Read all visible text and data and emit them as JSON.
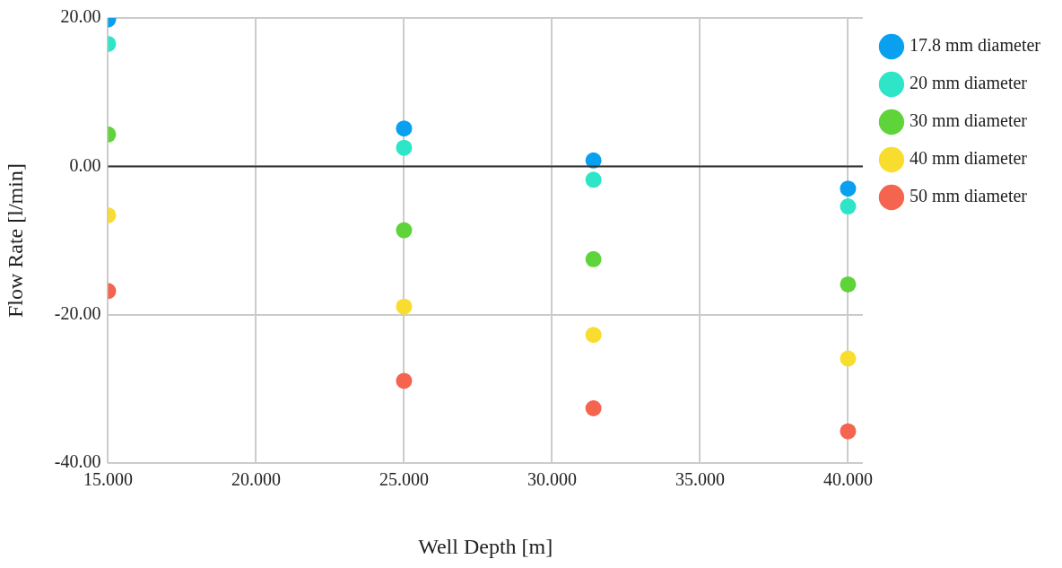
{
  "chart_data": {
    "type": "scatter",
    "xlabel": "Well Depth [m]",
    "ylabel": "Flow Rate [l/min]",
    "xlim": [
      15,
      40.5
    ],
    "ylim": [
      -40,
      20
    ],
    "xticks": [
      {
        "value": 15,
        "label": "15.000"
      },
      {
        "value": 20,
        "label": "20.000"
      },
      {
        "value": 25,
        "label": "25.000"
      },
      {
        "value": 30,
        "label": "30.000"
      },
      {
        "value": 35,
        "label": "35.000"
      },
      {
        "value": 40,
        "label": "40.000"
      }
    ],
    "yticks": [
      {
        "value": -40,
        "label": "-40.00"
      },
      {
        "value": -20,
        "label": "-20.00"
      },
      {
        "value": 0,
        "label": "0.00"
      },
      {
        "value": 20,
        "label": "20.00"
      }
    ],
    "x": [
      15,
      25,
      31.4,
      40
    ],
    "series": [
      {
        "name": "17.8 mm diameter",
        "color": "#0aa0f0",
        "values": [
          19.8,
          5.1,
          0.8,
          -3.0
        ]
      },
      {
        "name": "20 mm diameter",
        "color": "#2ee5c8",
        "values": [
          16.5,
          2.5,
          -1.8,
          -5.4
        ]
      },
      {
        "name": "30 mm diameter",
        "color": "#5fd33a",
        "values": [
          4.3,
          -8.6,
          -12.5,
          -15.9
        ]
      },
      {
        "name": "40 mm diameter",
        "color": "#f9dd2e",
        "values": [
          -6.6,
          -18.9,
          -22.7,
          -25.9
        ]
      },
      {
        "name": "50 mm diameter",
        "color": "#f4644e",
        "values": [
          -16.8,
          -28.9,
          -32.6,
          -35.7
        ]
      }
    ],
    "ref_lines": [
      {
        "axis": "y",
        "value": 0,
        "color": "#333333"
      }
    ],
    "grid": true,
    "legend": "top right",
    "marker": "circle"
  }
}
